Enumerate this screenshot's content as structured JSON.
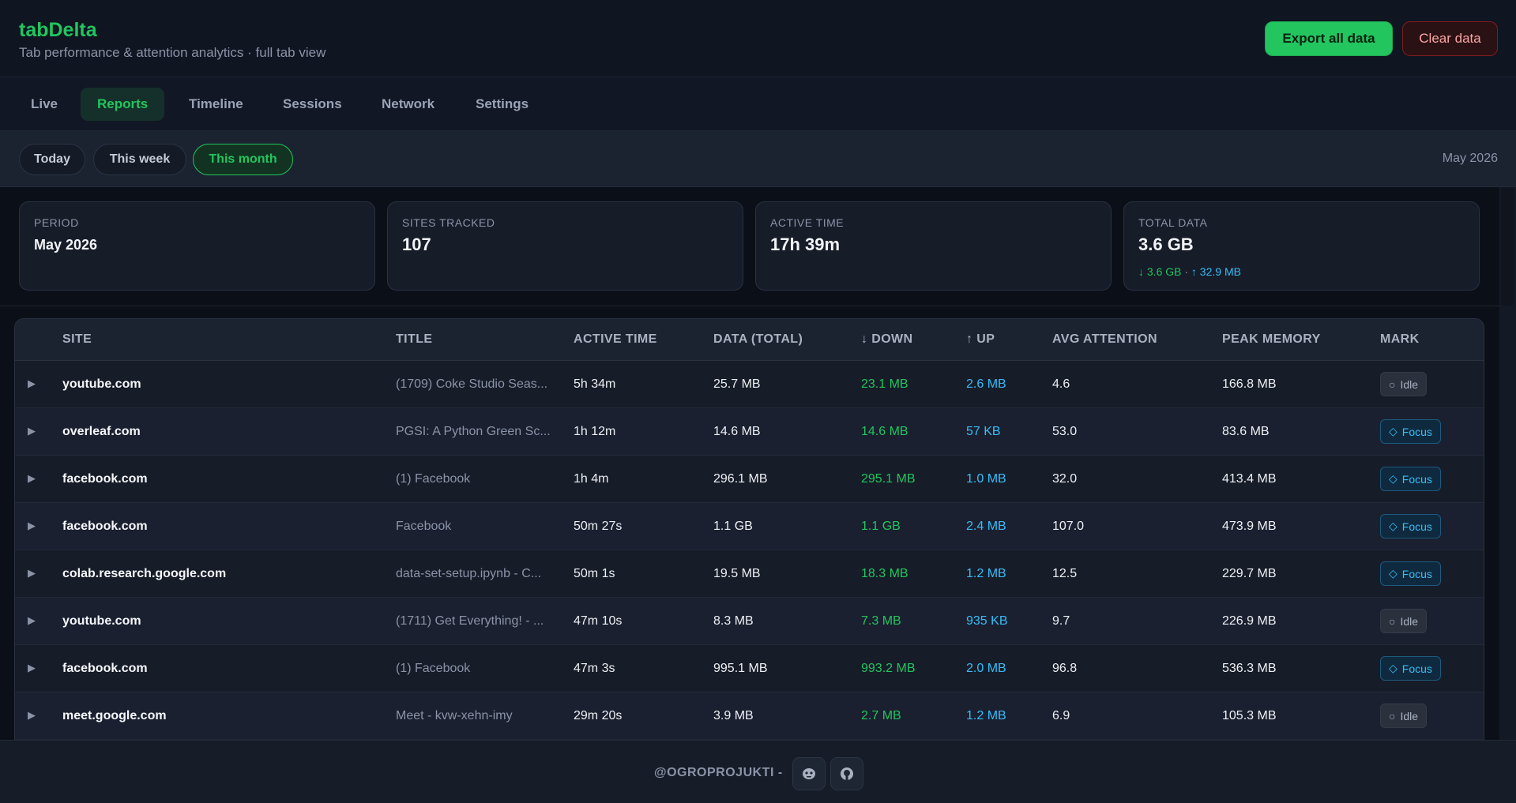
{
  "app": {
    "title": "tabDelta",
    "subtitle": "Tab performance & attention analytics · full tab view",
    "export_label": "Export all data",
    "clear_label": "Clear data"
  },
  "nav": {
    "tabs": [
      {
        "label": "Live"
      },
      {
        "label": "Reports"
      },
      {
        "label": "Timeline"
      },
      {
        "label": "Sessions"
      },
      {
        "label": "Network"
      },
      {
        "label": "Settings"
      }
    ],
    "active": "Reports"
  },
  "period": {
    "options": [
      {
        "label": "Today"
      },
      {
        "label": "This week"
      },
      {
        "label": "This month"
      }
    ],
    "active": "This month",
    "current_label": "May 2026"
  },
  "summary": {
    "period": {
      "label": "PERIOD",
      "value": "May 2026"
    },
    "sites": {
      "label": "SITES TRACKED",
      "value": "107"
    },
    "active": {
      "label": "ACTIVE TIME",
      "value": "17h 39m"
    },
    "data": {
      "label": "TOTAL DATA",
      "value": "3.6 GB",
      "down": "↓ 3.6 GB",
      "sep": " · ",
      "up": "↑ 32.9 MB"
    }
  },
  "table": {
    "headers": {
      "site": "SITE",
      "title": "TITLE",
      "active_time": "ACTIVE TIME",
      "data_total": "DATA (TOTAL)",
      "down": "↓ DOWN",
      "up": "↑ UP",
      "avg_attention": "AVG ATTENTION",
      "peak_memory": "PEAK MEMORY",
      "mark": "MARK"
    },
    "rows": [
      {
        "site": "youtube.com",
        "title": "(1709) Coke Studio Seas...",
        "active": "5h 34m",
        "total": "25.7 MB",
        "down": "23.1 MB",
        "up": "2.6 MB",
        "attention": "4.6",
        "memory": "166.8 MB",
        "mark": "Idle"
      },
      {
        "site": "overleaf.com",
        "title": "PGSI: A Python Green Sc...",
        "active": "1h 12m",
        "total": "14.6 MB",
        "down": "14.6 MB",
        "up": "57 KB",
        "attention": "53.0",
        "memory": "83.6 MB",
        "mark": "Focus"
      },
      {
        "site": "facebook.com",
        "title": "(1) Facebook",
        "active": "1h 4m",
        "total": "296.1 MB",
        "down": "295.1 MB",
        "up": "1.0 MB",
        "attention": "32.0",
        "memory": "413.4 MB",
        "mark": "Focus"
      },
      {
        "site": "facebook.com",
        "title": "Facebook",
        "active": "50m 27s",
        "total": "1.1 GB",
        "down": "1.1 GB",
        "up": "2.4 MB",
        "attention": "107.0",
        "memory": "473.9 MB",
        "mark": "Focus"
      },
      {
        "site": "colab.research.google.com",
        "title": "data-set-setup.ipynb - C...",
        "active": "50m 1s",
        "total": "19.5 MB",
        "down": "18.3 MB",
        "up": "1.2 MB",
        "attention": "12.5",
        "memory": "229.7 MB",
        "mark": "Focus"
      },
      {
        "site": "youtube.com",
        "title": "(1711) Get Everything! - ...",
        "active": "47m 10s",
        "total": "8.3 MB",
        "down": "7.3 MB",
        "up": "935 KB",
        "attention": "9.7",
        "memory": "226.9 MB",
        "mark": "Idle"
      },
      {
        "site": "facebook.com",
        "title": "(1) Facebook",
        "active": "47m 3s",
        "total": "995.1 MB",
        "down": "993.2 MB",
        "up": "2.0 MB",
        "attention": "96.8",
        "memory": "536.3 MB",
        "mark": "Focus"
      },
      {
        "site": "meet.google.com",
        "title": "Meet - kvw-xehn-imy",
        "active": "29m 20s",
        "total": "3.9 MB",
        "down": "2.7 MB",
        "up": "1.2 MB",
        "attention": "6.9",
        "memory": "105.3 MB",
        "mark": "Idle"
      }
    ]
  },
  "footer": {
    "credit": "@OGROPROJUKTI -",
    "icons": [
      "alien-icon",
      "github-icon"
    ]
  },
  "colors": {
    "accent": "#22c55e",
    "up": "#38bdf8",
    "danger": "#fca5a5"
  }
}
